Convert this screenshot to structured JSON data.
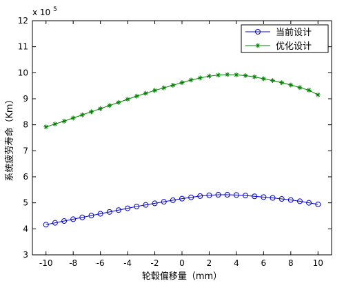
{
  "chart_data": {
    "type": "line",
    "xlabel": "轮毂偏移量（mm）",
    "ylabel": "系统疲劳寿命（Km）",
    "y_scale_label": "x 10",
    "y_scale_exponent": "5",
    "xlim": [
      -11,
      11
    ],
    "ylim": [
      3,
      12
    ],
    "x_ticks": [
      -10,
      -8,
      -6,
      -4,
      -2,
      0,
      2,
      4,
      6,
      8,
      10
    ],
    "y_ticks": [
      3,
      4,
      5,
      6,
      7,
      8,
      9,
      10,
      11,
      12
    ],
    "grid": false,
    "legend_position": "top-right",
    "x": [
      -10,
      -9.333,
      -8.667,
      -8,
      -7.333,
      -6.667,
      -6,
      -5.333,
      -4.667,
      -4,
      -3.333,
      -2.667,
      -2,
      -1.333,
      -0.667,
      0,
      0.667,
      1.333,
      2,
      2.667,
      3.333,
      4,
      4.667,
      5.333,
      6,
      6.667,
      7.333,
      8,
      8.667,
      9.333,
      10
    ],
    "series": [
      {
        "name": "当前设计",
        "color": "#0000cc",
        "marker": "circle",
        "values": [
          4.16,
          4.23,
          4.3,
          4.37,
          4.44,
          4.51,
          4.58,
          4.65,
          4.72,
          4.79,
          4.86,
          4.92,
          4.98,
          5.04,
          5.1,
          5.16,
          5.21,
          5.26,
          5.29,
          5.31,
          5.31,
          5.3,
          5.28,
          5.25,
          5.22,
          5.19,
          5.15,
          5.11,
          5.06,
          5.0,
          4.94
        ]
      },
      {
        "name": "优化设计",
        "color": "#008000",
        "marker": "star",
        "values": [
          7.92,
          8.03,
          8.14,
          8.26,
          8.38,
          8.5,
          8.62,
          8.74,
          8.86,
          8.98,
          9.1,
          9.21,
          9.32,
          9.42,
          9.52,
          9.62,
          9.72,
          9.8,
          9.87,
          9.91,
          9.93,
          9.92,
          9.89,
          9.84,
          9.77,
          9.7,
          9.62,
          9.53,
          9.43,
          9.33,
          9.15
        ]
      }
    ]
  }
}
